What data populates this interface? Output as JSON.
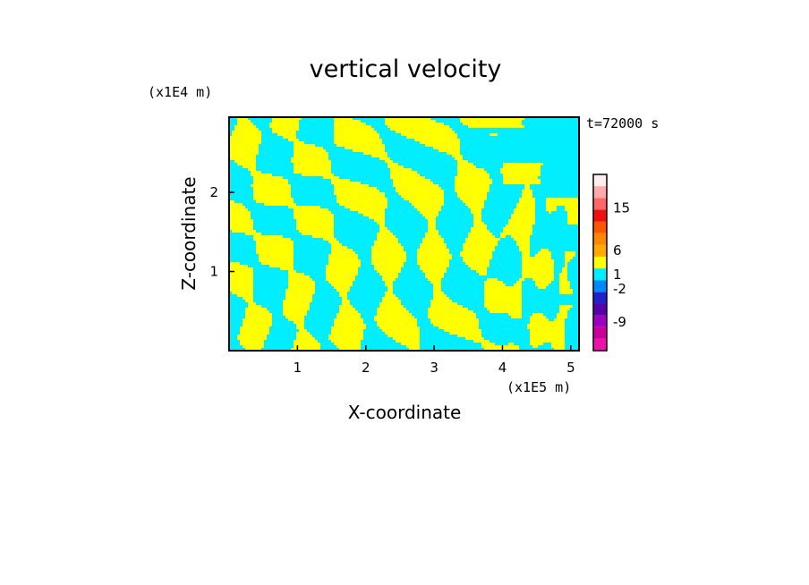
{
  "chart_data": {
    "type": "heatmap",
    "title": "vertical velocity",
    "xlabel": "X-coordinate",
    "ylabel": "Z-coordinate",
    "x_scale_label": "(x1E5 m)",
    "y_scale_label": "(x1E4 m)",
    "time_label": "t=72000 s",
    "xlim": [
      0.0,
      5.12
    ],
    "ylim": [
      0.0,
      2.95
    ],
    "x_ticks": [
      "1",
      "2",
      "3",
      "4",
      "5"
    ],
    "y_ticks": [
      "1",
      "2"
    ],
    "x_tick_values": [
      1,
      2,
      3,
      4,
      5
    ],
    "y_tick_values": [
      1,
      2
    ],
    "colorbar": {
      "colors": [
        "#ee11aa",
        "#cc0099",
        "#a000c0",
        "#5500aa",
        "#2222cc",
        "#0088ff",
        "#00eeff",
        "#ffff00",
        "#ffaa00",
        "#ff8800",
        "#ff5500",
        "#ee1111",
        "#ff6666",
        "#ffaaaa",
        "#ffeeee"
      ],
      "tick_labels": [
        "15",
        "6",
        "1",
        "-2",
        "-9"
      ],
      "tick_values": [
        15,
        6,
        1,
        -2,
        -9
      ]
    },
    "grid": false,
    "dominant_colors": {
      "positive": "#ffff00",
      "negative": "#00eeff"
    }
  }
}
